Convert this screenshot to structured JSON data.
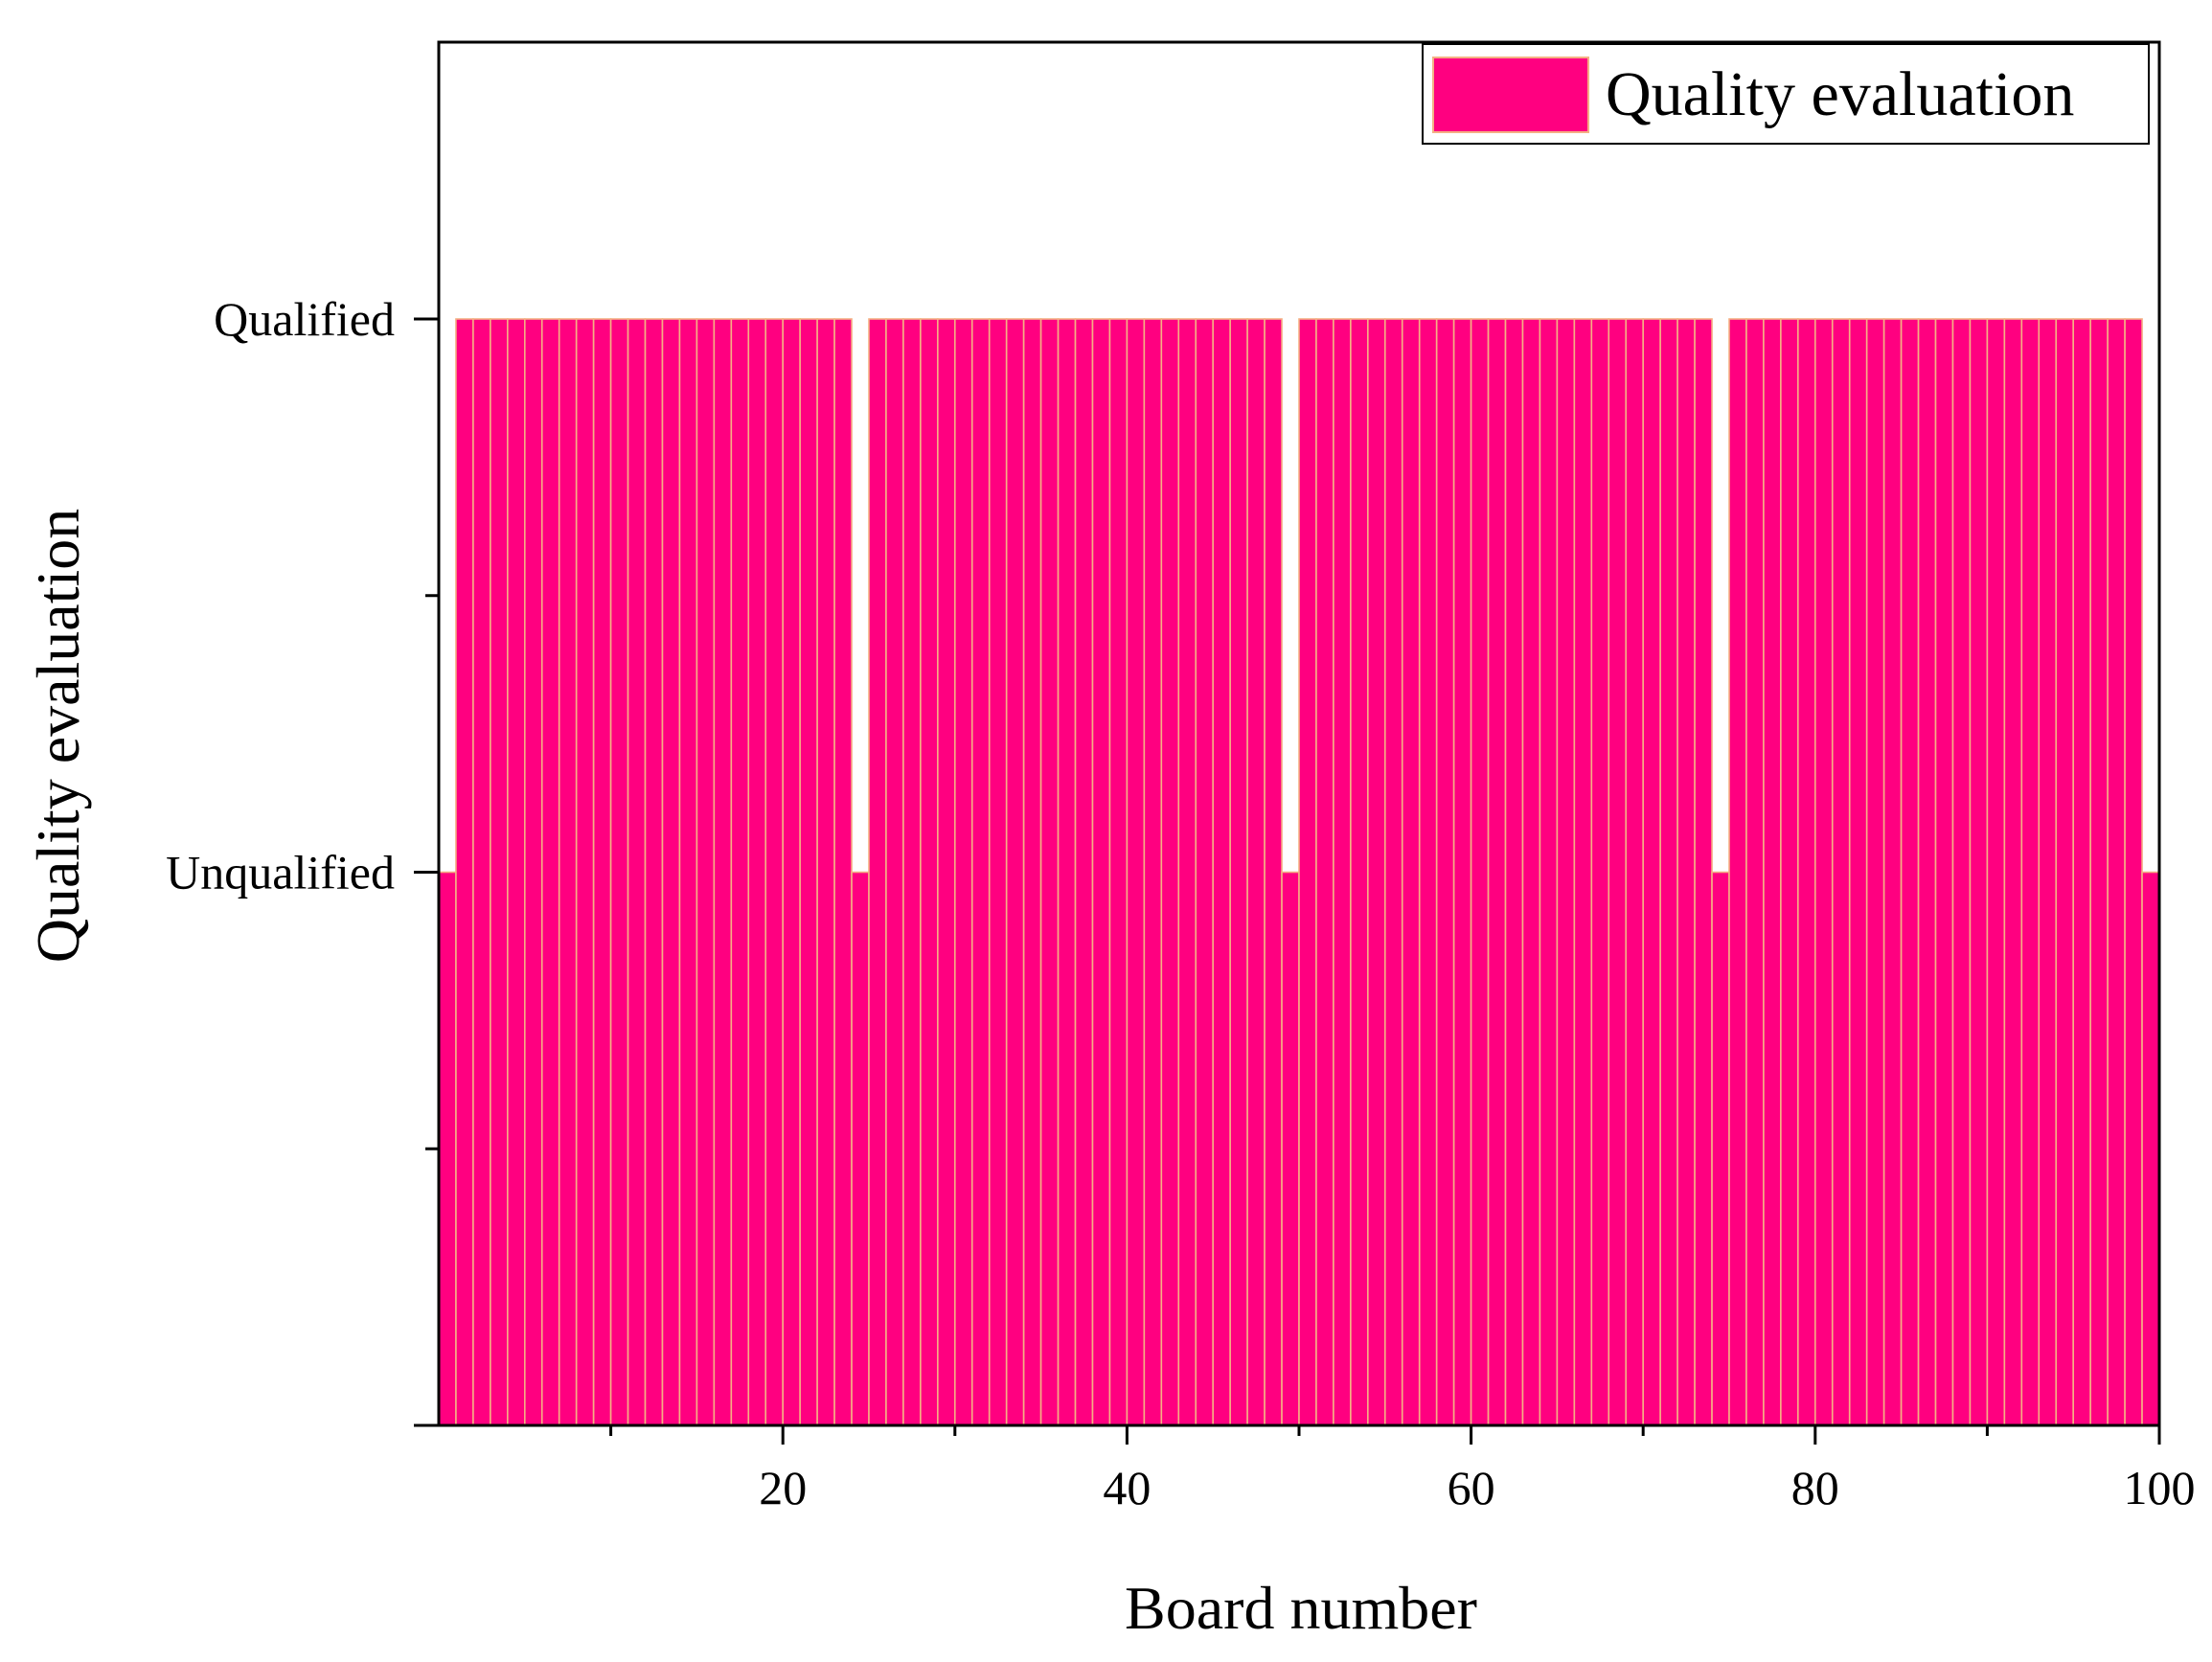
{
  "chart_data": {
    "type": "bar",
    "title": "",
    "xlabel": "Board number",
    "ylabel": "Quality evaluation",
    "xlim": [
      0,
      100
    ],
    "ylim": [
      0,
      2
    ],
    "x_ticks": [
      20,
      40,
      60,
      80,
      100
    ],
    "x_minor_ticks": [
      10,
      30,
      50,
      70,
      90
    ],
    "y_ticks": [
      {
        "value": 1,
        "label": "Unqualified"
      },
      {
        "value": 2,
        "label": "Qualified"
      }
    ],
    "y_minor_ticks": [
      0.5,
      1.5
    ],
    "categories_range": [
      1,
      100
    ],
    "default_value": 2,
    "unqualified_value": 1,
    "unqualified_boards": [
      1,
      25,
      50,
      75,
      100
    ],
    "series": [
      {
        "name": "Quality evaluation",
        "color": "#FF0080",
        "edge_color": "#F4B084"
      }
    ],
    "legend": {
      "position": "top-right",
      "label": "Quality evaluation"
    },
    "grid": false
  }
}
